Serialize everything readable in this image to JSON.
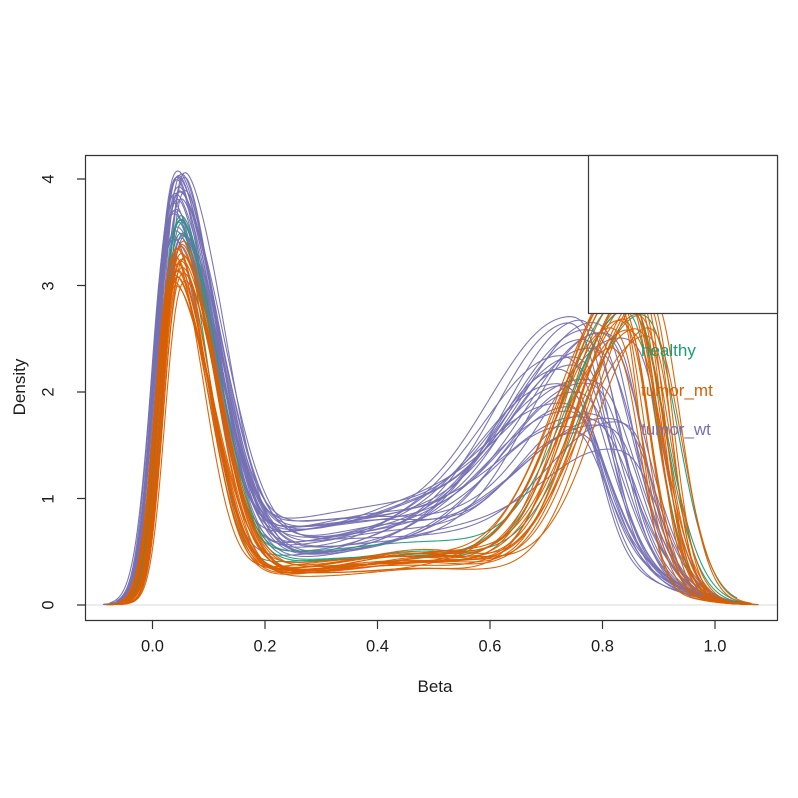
{
  "figure": {
    "background": "#ffffff",
    "axis_color": "#323232",
    "tick_color": "#323232",
    "text_color": "#1c1c1c",
    "zero_line_color": "#d8d8d8",
    "legend_border_color": "#3a3a3a",
    "legend_background": "#ffffff"
  },
  "chart_data": {
    "type": "line",
    "subtype": "kde-density-curves",
    "title": "",
    "xlabel": "Beta",
    "ylabel": "Density",
    "xticks": [
      0.0,
      0.2,
      0.4,
      0.6,
      0.8,
      1.0
    ],
    "xtick_labels": [
      "0.0",
      "0.2",
      "0.4",
      "0.6",
      "0.8",
      "1.0"
    ],
    "yticks": [
      0,
      1,
      2,
      3,
      4
    ],
    "ytick_labels": [
      "0",
      "1",
      "2",
      "3",
      "4"
    ],
    "xlim": [
      -0.119,
      1.112
    ],
    "ylim": [
      -0.145,
      4.23
    ],
    "zero_line_y": 0,
    "grid": false,
    "legend": {
      "position": "topright",
      "entries": [
        {
          "label": "healthy",
          "color": "#1B9E77"
        },
        {
          "label": "tumor_mt",
          "color": "#D95F02"
        },
        {
          "label": "tumor_wt",
          "color": "#7570B3"
        }
      ]
    },
    "draw_order": [
      2,
      0,
      1
    ],
    "groups": [
      {
        "name": "healthy",
        "color": "#1B9E77",
        "n": 4,
        "seed": 42,
        "peak1_x": [
          0.042,
          0.054
        ],
        "peak1_h": [
          3.42,
          3.66
        ],
        "peak1_sl": [
          0.028,
          0.033
        ],
        "peak1_sr": [
          0.052,
          0.066
        ],
        "peak2_x": [
          0.838,
          0.9
        ],
        "peak2_h": [
          2.3,
          2.66
        ],
        "peak2_sl": [
          0.1,
          0.125
        ],
        "peak2_sr": [
          0.048,
          0.066
        ],
        "valley": [
          0.4,
          0.52
        ],
        "bump_h": [
          0.04,
          0.12
        ],
        "bump_c": [
          0.44,
          0.5
        ],
        "wiggle": 0.03,
        "x_start": [
          -0.08,
          -0.06
        ],
        "x_end": [
          1.04,
          1.07
        ]
      },
      {
        "name": "tumor_mt",
        "color": "#D95F02",
        "n": 22,
        "seed": 2024,
        "peak1_x": [
          0.038,
          0.058
        ],
        "peak1_h": [
          2.95,
          3.52
        ],
        "peak1_sl": [
          0.027,
          0.033
        ],
        "peak1_sr": [
          0.05,
          0.068
        ],
        "peak2_x": [
          0.815,
          0.885
        ],
        "peak2_h": [
          2.18,
          2.9
        ],
        "peak2_sl": [
          0.085,
          0.115
        ],
        "peak2_sr": [
          0.04,
          0.058
        ],
        "valley": [
          0.26,
          0.4
        ],
        "bump_h": [
          0.06,
          0.16
        ],
        "bump_c": [
          0.44,
          0.54
        ],
        "wiggle": 0.04,
        "x_start": [
          -0.085,
          -0.055
        ],
        "x_end": [
          1.03,
          1.08
        ]
      },
      {
        "name": "tumor_wt",
        "color": "#7570B3",
        "n": 30,
        "seed": 1337,
        "peak1_x": [
          0.036,
          0.058
        ],
        "peak1_h": [
          3.28,
          4.03
        ],
        "peak1_sl": [
          0.027,
          0.035
        ],
        "peak1_sr": [
          0.055,
          0.08
        ],
        "peak2_x": [
          0.725,
          0.848
        ],
        "peak2_h": [
          1.15,
          2.28
        ],
        "peak2_sl": [
          0.11,
          0.158
        ],
        "peak2_sr": [
          0.05,
          0.075
        ],
        "valley": [
          0.42,
          0.8
        ],
        "bump_h": [
          0.04,
          0.2
        ],
        "bump_c": [
          0.4,
          0.52
        ],
        "wiggle": 0.055,
        "x_start": [
          -0.088,
          -0.058
        ],
        "x_end": [
          1.02,
          1.06
        ]
      }
    ]
  }
}
